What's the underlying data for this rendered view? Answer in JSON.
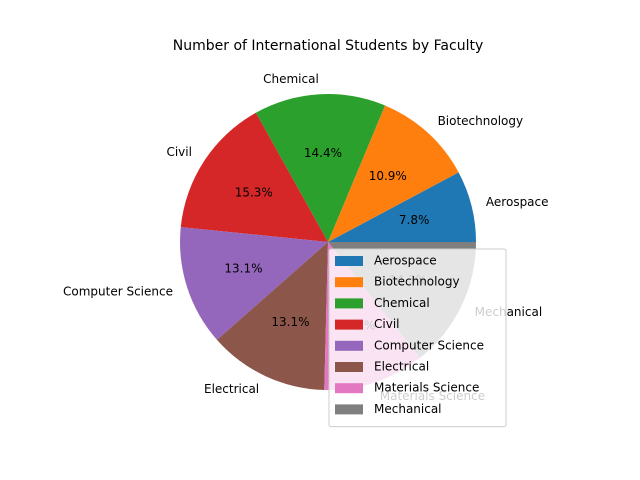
{
  "chart_data": {
    "type": "pie",
    "title": "Number of International Students by Faculty",
    "categories": [
      "Aerospace",
      "Biotechnology",
      "Chemical",
      "Civil",
      "Computer Science",
      "Electrical",
      "Materials Science",
      "Mechanical"
    ],
    "values": [
      7.8,
      10.9,
      14.4,
      15.3,
      13.1,
      13.1,
      11.1,
      14.3
    ],
    "value_labels": [
      "7.8%",
      "10.9%",
      "14.4%",
      "15.3%",
      "13.1%",
      "13.1%",
      "11.1%",
      "14.3%"
    ],
    "colors": [
      "#1f77b4",
      "#ff7f0e",
      "#2ca02c",
      "#d62728",
      "#9467bd",
      "#8c564b",
      "#e377c2",
      "#7f7f7f"
    ],
    "start_angle_deg": 0,
    "direction": "counterclockwise",
    "legend": {
      "placement": "lower-right",
      "entries": [
        "Aerospace",
        "Biotechnology",
        "Chemical",
        "Civil",
        "Computer Science",
        "Electrical",
        "Materials Science",
        "Mechanical"
      ]
    }
  }
}
